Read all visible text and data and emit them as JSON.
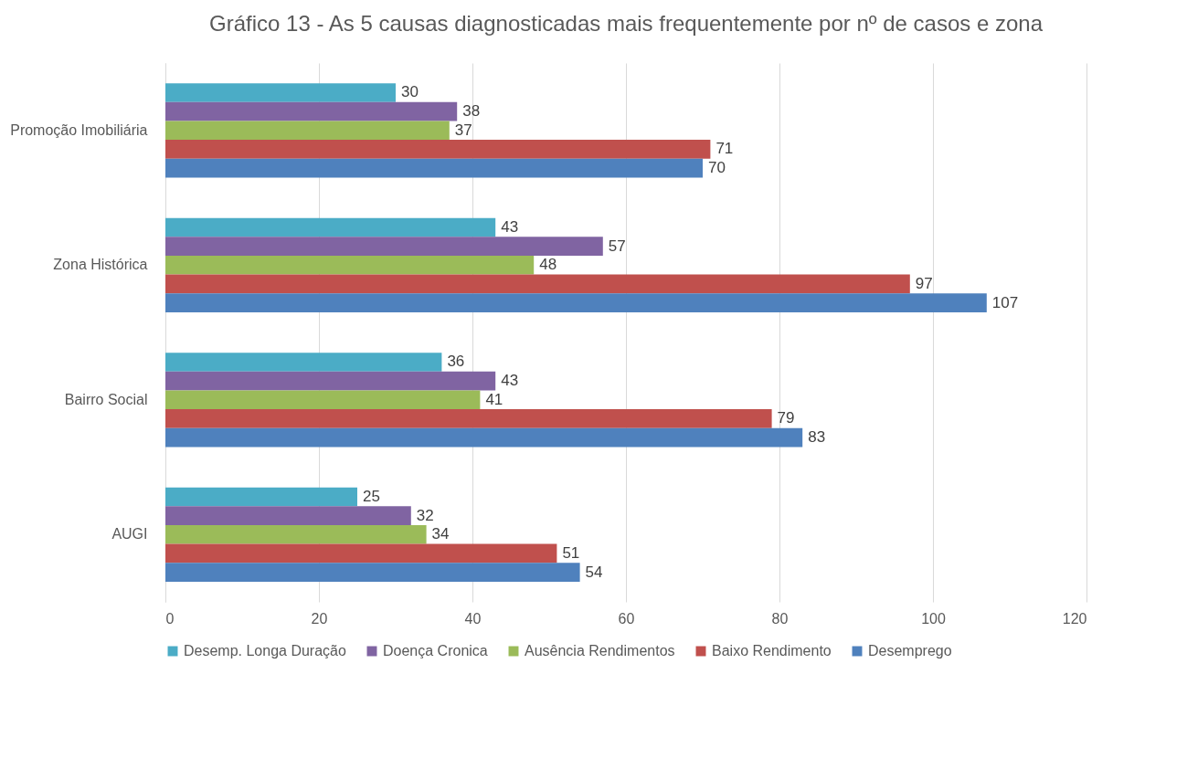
{
  "chart_data": {
    "type": "bar",
    "orientation": "horizontal",
    "title": "Gráfico 13 - As 5 causas diagnosticadas mais frequentemente por nº de casos e zona",
    "categories": [
      "Promoção Imobiliária",
      "Zona Histórica",
      "Bairro Social",
      "AUGI"
    ],
    "series": [
      {
        "name": "Desemp. Longa Duração",
        "color": "#4bacc6",
        "values": [
          30,
          43,
          36,
          25
        ]
      },
      {
        "name": "Doença Cronica",
        "color": "#8064a2",
        "values": [
          38,
          57,
          43,
          32
        ]
      },
      {
        "name": "Ausência Rendimentos",
        "color": "#9bbb59",
        "values": [
          37,
          48,
          41,
          34
        ]
      },
      {
        "name": "Baixo Rendimento",
        "color": "#c0504d",
        "values": [
          71,
          97,
          79,
          51
        ]
      },
      {
        "name": "Desemprego",
        "color": "#4f81bd",
        "values": [
          70,
          107,
          83,
          54
        ]
      }
    ],
    "xlim": [
      0,
      120
    ],
    "xticks": [
      0,
      20,
      40,
      60,
      80,
      100,
      120
    ],
    "grid": "x",
    "legend": "bottom",
    "data_labels": true
  }
}
